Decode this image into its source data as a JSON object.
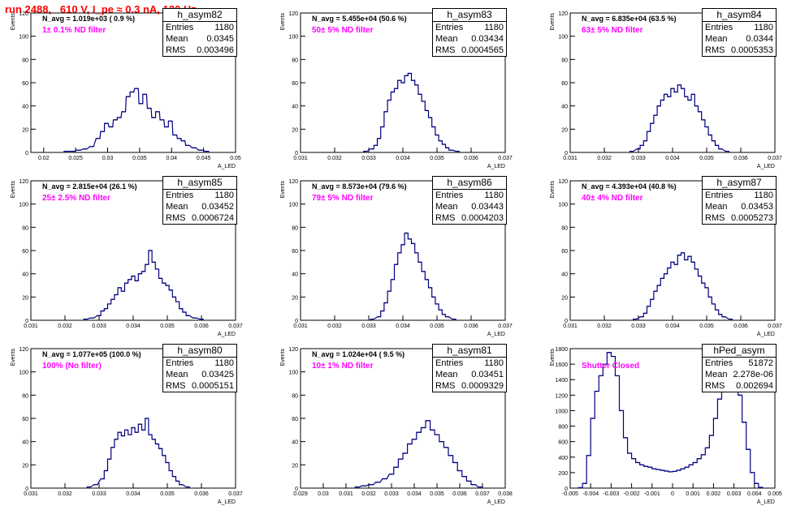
{
  "title": "run 2488,   610 V, I_pe ≈ 0.3 nA, 120 Hz",
  "colors": {
    "title": "#ff0000",
    "hist": "#000080",
    "note": "#ff00ff"
  },
  "y_axis_label": "Events",
  "x_axis_label": "A_LED",
  "chart_data": [
    {
      "type": "histogram",
      "name": "h_asym82",
      "stats": {
        "entries": "1180",
        "mean": "0.0345",
        "rms": "0.003496"
      },
      "navg": "N_avg = 1.019e+03 ( 0.9 %)",
      "note": "1± 0.1% ND filter",
      "xlim": [
        0.018,
        0.05
      ],
      "ylim": [
        0,
        120
      ],
      "xticks": [
        "0.02",
        "0.025",
        "0.03",
        "0.035",
        "0.04",
        "0.045",
        "0.05"
      ],
      "yticks": [
        "0",
        "20",
        "40",
        "60",
        "80",
        "100",
        "120"
      ],
      "values": [
        [
          0.0235,
          1
        ],
        [
          0.0245,
          1
        ],
        [
          0.0255,
          2
        ],
        [
          0.0265,
          3
        ],
        [
          0.0275,
          5
        ],
        [
          0.0285,
          12
        ],
        [
          0.0292,
          18
        ],
        [
          0.0298,
          25
        ],
        [
          0.0305,
          22
        ],
        [
          0.0312,
          28
        ],
        [
          0.0318,
          30
        ],
        [
          0.0325,
          35
        ],
        [
          0.0332,
          48
        ],
        [
          0.0338,
          52
        ],
        [
          0.0345,
          55
        ],
        [
          0.0352,
          42
        ],
        [
          0.0358,
          50
        ],
        [
          0.0365,
          38
        ],
        [
          0.0372,
          30
        ],
        [
          0.0378,
          35
        ],
        [
          0.0385,
          28
        ],
        [
          0.0392,
          22
        ],
        [
          0.0398,
          27
        ],
        [
          0.0405,
          15
        ],
        [
          0.0412,
          12
        ],
        [
          0.0418,
          10
        ],
        [
          0.0425,
          6
        ],
        [
          0.0435,
          4
        ],
        [
          0.0445,
          2
        ],
        [
          0.0455,
          1
        ]
      ]
    },
    {
      "type": "histogram",
      "name": "h_asym83",
      "stats": {
        "entries": "1180",
        "mean": "0.03434",
        "rms": "0.0004565"
      },
      "navg": "N_avg = 5.455e+04 (50.6 %)",
      "note": "50± 5% ND filter",
      "xlim": [
        0.031,
        0.037
      ],
      "ylim": [
        0,
        120
      ],
      "xticks": [
        "0.031",
        "0.032",
        "0.033",
        "0.034",
        "0.035",
        "0.036",
        "0.037"
      ],
      "yticks": [
        "0",
        "20",
        "40",
        "60",
        "80",
        "100",
        "120"
      ],
      "values": [
        [
          0.0329,
          1
        ],
        [
          0.0331,
          3
        ],
        [
          0.0332,
          6
        ],
        [
          0.0333,
          12
        ],
        [
          0.0334,
          22
        ],
        [
          0.0335,
          35
        ],
        [
          0.0336,
          45
        ],
        [
          0.0337,
          52
        ],
        [
          0.0338,
          55
        ],
        [
          0.0339,
          62
        ],
        [
          0.034,
          60
        ],
        [
          0.0341,
          66
        ],
        [
          0.0342,
          68
        ],
        [
          0.0343,
          62
        ],
        [
          0.0344,
          58
        ],
        [
          0.0345,
          50
        ],
        [
          0.0346,
          44
        ],
        [
          0.0347,
          36
        ],
        [
          0.0348,
          30
        ],
        [
          0.0349,
          22
        ],
        [
          0.035,
          15
        ],
        [
          0.0351,
          10
        ],
        [
          0.0352,
          7
        ],
        [
          0.0353,
          4
        ],
        [
          0.0354,
          2
        ],
        [
          0.0356,
          1
        ]
      ]
    },
    {
      "type": "histogram",
      "name": "h_asym84",
      "stats": {
        "entries": "1180",
        "mean": "0.0344",
        "rms": "0.0005353"
      },
      "navg": "N_avg = 6.835e+04 (63.5 %)",
      "note": "63± 5% ND filter",
      "xlim": [
        0.031,
        0.037
      ],
      "ylim": [
        0,
        120
      ],
      "xticks": [
        "0.031",
        "0.032",
        "0.033",
        "0.034",
        "0.035",
        "0.036",
        "0.037"
      ],
      "yticks": [
        "0",
        "20",
        "40",
        "60",
        "80",
        "100",
        "120"
      ],
      "values": [
        [
          0.0328,
          1
        ],
        [
          0.033,
          3
        ],
        [
          0.0331,
          6
        ],
        [
          0.0332,
          10
        ],
        [
          0.0333,
          18
        ],
        [
          0.0334,
          25
        ],
        [
          0.0335,
          32
        ],
        [
          0.0336,
          40
        ],
        [
          0.0337,
          45
        ],
        [
          0.0338,
          50
        ],
        [
          0.0339,
          48
        ],
        [
          0.034,
          55
        ],
        [
          0.0341,
          52
        ],
        [
          0.0342,
          58
        ],
        [
          0.0343,
          55
        ],
        [
          0.0344,
          48
        ],
        [
          0.0345,
          45
        ],
        [
          0.0346,
          50
        ],
        [
          0.0347,
          40
        ],
        [
          0.0348,
          35
        ],
        [
          0.0349,
          28
        ],
        [
          0.035,
          22
        ],
        [
          0.0351,
          15
        ],
        [
          0.0352,
          10
        ],
        [
          0.0353,
          6
        ],
        [
          0.0354,
          3
        ],
        [
          0.0356,
          1
        ]
      ]
    },
    {
      "type": "histogram",
      "name": "h_asym85",
      "stats": {
        "entries": "1180",
        "mean": "0.03452",
        "rms": "0.0006724"
      },
      "navg": "N_avg = 2.815e+04 (26.1 %)",
      "note": "25± 2.5% ND filter",
      "xlim": [
        0.031,
        0.037
      ],
      "ylim": [
        0,
        120
      ],
      "xticks": [
        "0.031",
        "0.032",
        "0.033",
        "0.034",
        "0.035",
        "0.036",
        "0.037"
      ],
      "yticks": [
        "0",
        "20",
        "40",
        "60",
        "80",
        "100",
        "120"
      ],
      "values": [
        [
          0.0326,
          1
        ],
        [
          0.0328,
          2
        ],
        [
          0.033,
          4
        ],
        [
          0.0331,
          8
        ],
        [
          0.0332,
          10
        ],
        [
          0.0333,
          14
        ],
        [
          0.0334,
          18
        ],
        [
          0.0335,
          22
        ],
        [
          0.0336,
          28
        ],
        [
          0.0337,
          25
        ],
        [
          0.0338,
          32
        ],
        [
          0.0339,
          35
        ],
        [
          0.034,
          38
        ],
        [
          0.0341,
          34
        ],
        [
          0.0342,
          40
        ],
        [
          0.0343,
          42
        ],
        [
          0.0344,
          48
        ],
        [
          0.0345,
          60
        ],
        [
          0.0346,
          50
        ],
        [
          0.0347,
          44
        ],
        [
          0.0348,
          36
        ],
        [
          0.0349,
          32
        ],
        [
          0.035,
          30
        ],
        [
          0.0351,
          26
        ],
        [
          0.0352,
          20
        ],
        [
          0.0353,
          16
        ],
        [
          0.0354,
          10
        ],
        [
          0.0355,
          7
        ],
        [
          0.0356,
          4
        ],
        [
          0.0358,
          2
        ],
        [
          0.036,
          1
        ]
      ]
    },
    {
      "type": "histogram",
      "name": "h_asym86",
      "stats": {
        "entries": "1180",
        "mean": "0.03443",
        "rms": "0.0004203"
      },
      "navg": "N_avg = 8.573e+04 (79.6 %)",
      "note": "79± 5% ND filter",
      "xlim": [
        0.031,
        0.037
      ],
      "ylim": [
        0,
        120
      ],
      "xticks": [
        "0.031",
        "0.032",
        "0.033",
        "0.034",
        "0.035",
        "0.036",
        "0.037"
      ],
      "yticks": [
        "0",
        "20",
        "40",
        "60",
        "80",
        "100",
        "120"
      ],
      "values": [
        [
          0.0331,
          1
        ],
        [
          0.0333,
          3
        ],
        [
          0.0334,
          8
        ],
        [
          0.0335,
          15
        ],
        [
          0.0336,
          25
        ],
        [
          0.0337,
          35
        ],
        [
          0.0338,
          48
        ],
        [
          0.0339,
          58
        ],
        [
          0.034,
          65
        ],
        [
          0.0341,
          75
        ],
        [
          0.0342,
          70
        ],
        [
          0.0343,
          66
        ],
        [
          0.0344,
          58
        ],
        [
          0.0345,
          50
        ],
        [
          0.0346,
          42
        ],
        [
          0.0347,
          35
        ],
        [
          0.0348,
          28
        ],
        [
          0.0349,
          20
        ],
        [
          0.035,
          14
        ],
        [
          0.0351,
          9
        ],
        [
          0.0352,
          5
        ],
        [
          0.0353,
          3
        ],
        [
          0.0355,
          1
        ]
      ]
    },
    {
      "type": "histogram",
      "name": "h_asym87",
      "stats": {
        "entries": "1180",
        "mean": "0.03453",
        "rms": "0.0005273"
      },
      "navg": "N_avg = 4.393e+04 (40.8 %)",
      "note": "40± 4% ND filter",
      "xlim": [
        0.031,
        0.037
      ],
      "ylim": [
        0,
        120
      ],
      "xticks": [
        "0.031",
        "0.032",
        "0.033",
        "0.034",
        "0.035",
        "0.036",
        "0.037"
      ],
      "yticks": [
        "0",
        "20",
        "40",
        "60",
        "80",
        "100",
        "120"
      ],
      "values": [
        [
          0.0329,
          1
        ],
        [
          0.0331,
          3
        ],
        [
          0.0332,
          6
        ],
        [
          0.0333,
          12
        ],
        [
          0.0334,
          18
        ],
        [
          0.0335,
          25
        ],
        [
          0.0336,
          30
        ],
        [
          0.0337,
          36
        ],
        [
          0.0338,
          40
        ],
        [
          0.0339,
          45
        ],
        [
          0.034,
          50
        ],
        [
          0.0341,
          48
        ],
        [
          0.0342,
          56
        ],
        [
          0.0343,
          58
        ],
        [
          0.0344,
          52
        ],
        [
          0.0345,
          55
        ],
        [
          0.0346,
          50
        ],
        [
          0.0347,
          44
        ],
        [
          0.0348,
          38
        ],
        [
          0.0349,
          32
        ],
        [
          0.035,
          28
        ],
        [
          0.0351,
          20
        ],
        [
          0.0352,
          14
        ],
        [
          0.0353,
          9
        ],
        [
          0.0354,
          5
        ],
        [
          0.0355,
          3
        ],
        [
          0.0357,
          1
        ]
      ]
    },
    {
      "type": "histogram",
      "name": "h_asym80",
      "stats": {
        "entries": "1180",
        "mean": "0.03425",
        "rms": "0.0005151"
      },
      "navg": "N_avg = 1.077e+05 (100.0 %)",
      "note": "100% (No filter)",
      "xlim": [
        0.031,
        0.037
      ],
      "ylim": [
        0,
        120
      ],
      "xticks": [
        "0.031",
        "0.032",
        "0.033",
        "0.034",
        "0.035",
        "0.036",
        "0.037"
      ],
      "yticks": [
        "0",
        "20",
        "40",
        "60",
        "80",
        "100",
        "120"
      ],
      "values": [
        [
          0.0327,
          1
        ],
        [
          0.0329,
          3
        ],
        [
          0.0331,
          8
        ],
        [
          0.0332,
          15
        ],
        [
          0.0333,
          25
        ],
        [
          0.0334,
          35
        ],
        [
          0.0335,
          42
        ],
        [
          0.0336,
          48
        ],
        [
          0.0337,
          45
        ],
        [
          0.0338,
          50
        ],
        [
          0.0339,
          46
        ],
        [
          0.034,
          52
        ],
        [
          0.0341,
          48
        ],
        [
          0.0342,
          55
        ],
        [
          0.0343,
          50
        ],
        [
          0.0344,
          60
        ],
        [
          0.0345,
          46
        ],
        [
          0.0346,
          42
        ],
        [
          0.0347,
          38
        ],
        [
          0.0348,
          34
        ],
        [
          0.0349,
          28
        ],
        [
          0.035,
          22
        ],
        [
          0.0351,
          15
        ],
        [
          0.0352,
          10
        ],
        [
          0.0353,
          6
        ],
        [
          0.0354,
          3
        ],
        [
          0.0356,
          1
        ]
      ]
    },
    {
      "type": "histogram",
      "name": "h_asym81",
      "stats": {
        "entries": "1180",
        "mean": "0.03451",
        "rms": "0.0009329"
      },
      "navg": "N_avg = 1.024e+04 ( 9.5 %)",
      "note": "10± 1% ND filter",
      "xlim": [
        0.029,
        0.038
      ],
      "ylim": [
        0,
        120
      ],
      "xticks": [
        "0.029",
        "0.03",
        "0.031",
        "0.032",
        "0.033",
        "0.034",
        "0.035",
        "0.036",
        "0.037",
        "0.038"
      ],
      "yticks": [
        "0",
        "20",
        "40",
        "60",
        "80",
        "100",
        "120"
      ],
      "values": [
        [
          0.0315,
          1
        ],
        [
          0.0318,
          2
        ],
        [
          0.0321,
          3
        ],
        [
          0.0324,
          5
        ],
        [
          0.0327,
          8
        ],
        [
          0.033,
          12
        ],
        [
          0.0332,
          18
        ],
        [
          0.0334,
          25
        ],
        [
          0.0336,
          30
        ],
        [
          0.0338,
          38
        ],
        [
          0.034,
          42
        ],
        [
          0.0342,
          48
        ],
        [
          0.0344,
          52
        ],
        [
          0.0346,
          58
        ],
        [
          0.0348,
          50
        ],
        [
          0.035,
          46
        ],
        [
          0.0352,
          40
        ],
        [
          0.0354,
          35
        ],
        [
          0.0356,
          28
        ],
        [
          0.0358,
          22
        ],
        [
          0.036,
          15
        ],
        [
          0.0362,
          10
        ],
        [
          0.0364,
          6
        ],
        [
          0.0366,
          3
        ],
        [
          0.0369,
          1
        ]
      ]
    },
    {
      "type": "histogram",
      "name": "hPed_asym",
      "stats": {
        "entries": "51872",
        "mean": "2.278e-06",
        "rms": "0.002694"
      },
      "navg": "",
      "note": "Shutter Closed",
      "xlim": [
        -0.005,
        0.005
      ],
      "ylim": [
        0,
        1800
      ],
      "xticks": [
        "-0.005",
        "-0.004",
        "-0.003",
        "-0.002",
        "-0.001",
        "0",
        "0.001",
        "0.002",
        "0.003",
        "0.004",
        "0.005"
      ],
      "yticks": [
        "0",
        "200",
        "400",
        "600",
        "800",
        "1000",
        "1200",
        "1400",
        "1600",
        "1800"
      ],
      "values": [
        [
          -0.0045,
          5
        ],
        [
          -0.0043,
          60
        ],
        [
          -0.0041,
          420
        ],
        [
          -0.0039,
          900
        ],
        [
          -0.0037,
          1250
        ],
        [
          -0.0035,
          1450
        ],
        [
          -0.0033,
          1600
        ],
        [
          -0.0031,
          1750
        ],
        [
          -0.0029,
          1700
        ],
        [
          -0.0027,
          1450
        ],
        [
          -0.0025,
          1000
        ],
        [
          -0.0023,
          650
        ],
        [
          -0.0021,
          450
        ],
        [
          -0.0019,
          380
        ],
        [
          -0.0017,
          330
        ],
        [
          -0.0015,
          300
        ],
        [
          -0.0013,
          280
        ],
        [
          -0.0011,
          270
        ],
        [
          -0.0009,
          250
        ],
        [
          -0.0007,
          240
        ],
        [
          -0.0005,
          230
        ],
        [
          -0.0003,
          220
        ],
        [
          -0.0001,
          210
        ],
        [
          0.0001,
          215
        ],
        [
          0.0003,
          230
        ],
        [
          0.0005,
          250
        ],
        [
          0.0007,
          270
        ],
        [
          0.0009,
          300
        ],
        [
          0.0011,
          330
        ],
        [
          0.0013,
          380
        ],
        [
          0.0015,
          430
        ],
        [
          0.0017,
          520
        ],
        [
          0.0019,
          680
        ],
        [
          0.0021,
          900
        ],
        [
          0.0023,
          1150
        ],
        [
          0.0025,
          1350
        ],
        [
          0.0027,
          1500
        ],
        [
          0.0029,
          1600
        ],
        [
          0.0031,
          1450
        ],
        [
          0.0033,
          1200
        ],
        [
          0.0035,
          850
        ],
        [
          0.0037,
          500
        ],
        [
          0.0039,
          200
        ],
        [
          0.0041,
          60
        ],
        [
          0.0043,
          10
        ]
      ]
    }
  ]
}
